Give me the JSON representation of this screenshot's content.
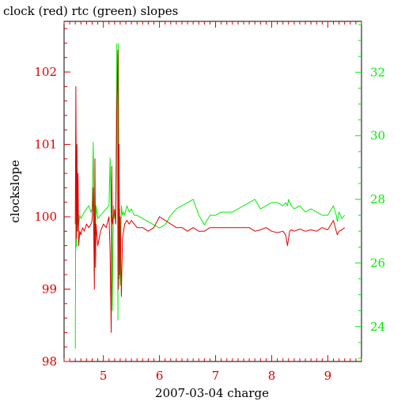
{
  "chart_data": {
    "type": "line",
    "title": "clock (red) rtc (green) slopes",
    "xlabel": "2007-03-04 charge",
    "ylabel_left": "clockslope",
    "ylabel_right": "",
    "xlim": [
      4.3,
      9.6
    ],
    "ylim_left": [
      98.0,
      102.7
    ],
    "ylim_right": [
      22.9,
      33.6
    ],
    "x_ticks": [
      5,
      6,
      7,
      8,
      9
    ],
    "y_ticks_left": [
      98,
      99,
      100,
      101,
      102
    ],
    "y_ticks_right": [
      24,
      26,
      28,
      30,
      32
    ],
    "grid": false,
    "legend": "none",
    "colors": {
      "clock": "#dd0000",
      "rtc": "#00ee00",
      "axis": "#000000",
      "tick_left": "#dd0000",
      "tick_right": "#00ee00"
    },
    "series": [
      {
        "name": "clock",
        "axis": "left",
        "x": [
          4.5,
          4.51,
          4.52,
          4.53,
          4.54,
          4.55,
          4.56,
          4.58,
          4.6,
          4.63,
          4.66,
          4.7,
          4.74,
          4.78,
          4.8,
          4.82,
          4.84,
          4.85,
          4.86,
          4.87,
          4.9,
          4.95,
          5.0,
          5.05,
          5.1,
          5.12,
          5.14,
          5.15,
          5.16,
          5.18,
          5.2,
          5.22,
          5.24,
          5.26,
          5.27,
          5.28,
          5.29,
          5.3,
          5.32,
          5.34,
          5.36,
          5.38,
          5.42,
          5.46,
          5.5,
          5.55,
          5.6,
          5.7,
          5.8,
          5.9,
          6.0,
          6.1,
          6.2,
          6.3,
          6.4,
          6.5,
          6.6,
          6.7,
          6.8,
          6.9,
          7.0,
          7.1,
          7.2,
          7.3,
          7.4,
          7.5,
          7.6,
          7.7,
          7.8,
          7.9,
          8.0,
          8.1,
          8.2,
          8.25,
          8.28,
          8.3,
          8.32,
          8.35,
          8.4,
          8.5,
          8.6,
          8.7,
          8.8,
          8.9,
          9.0,
          9.1,
          9.15,
          9.17,
          9.2,
          9.25,
          9.3
        ],
        "values": [
          99.9,
          101.8,
          99.7,
          101.0,
          99.8,
          100.6,
          99.6,
          99.8,
          99.75,
          99.85,
          99.8,
          99.9,
          99.85,
          99.9,
          99.95,
          100.4,
          99.0,
          100.8,
          99.3,
          99.9,
          99.6,
          99.8,
          99.9,
          99.85,
          100.0,
          99.5,
          98.4,
          100.7,
          99.9,
          100.0,
          100.1,
          99.9,
          101.5,
          102.3,
          99.0,
          101.0,
          99.2,
          100.0,
          98.9,
          99.7,
          99.8,
          99.9,
          99.95,
          99.9,
          99.95,
          99.9,
          99.85,
          99.85,
          99.8,
          99.85,
          100.0,
          99.95,
          99.9,
          99.85,
          99.85,
          99.8,
          99.85,
          99.8,
          99.8,
          99.85,
          99.85,
          99.85,
          99.85,
          99.85,
          99.85,
          99.85,
          99.85,
          99.8,
          99.82,
          99.85,
          99.8,
          99.78,
          99.8,
          99.75,
          99.6,
          99.7,
          99.8,
          99.82,
          99.8,
          99.83,
          99.8,
          99.82,
          99.8,
          99.85,
          99.82,
          99.95,
          99.8,
          99.75,
          99.8,
          99.82,
          99.85
        ]
      },
      {
        "name": "rtc",
        "axis": "right",
        "x": [
          4.5,
          4.51,
          4.52,
          4.53,
          4.54,
          4.55,
          4.56,
          4.58,
          4.6,
          4.63,
          4.66,
          4.7,
          4.74,
          4.78,
          4.8,
          4.82,
          4.84,
          4.85,
          4.86,
          4.87,
          4.9,
          4.95,
          5.0,
          5.05,
          5.1,
          5.12,
          5.14,
          5.15,
          5.16,
          5.18,
          5.2,
          5.22,
          5.24,
          5.26,
          5.27,
          5.28,
          5.29,
          5.3,
          5.32,
          5.34,
          5.36,
          5.38,
          5.42,
          5.46,
          5.5,
          5.55,
          5.6,
          5.7,
          5.8,
          5.9,
          6.0,
          6.1,
          6.2,
          6.3,
          6.4,
          6.5,
          6.6,
          6.7,
          6.8,
          6.9,
          7.0,
          7.1,
          7.2,
          7.3,
          7.4,
          7.5,
          7.6,
          7.7,
          7.8,
          7.9,
          8.0,
          8.1,
          8.2,
          8.25,
          8.28,
          8.3,
          8.32,
          8.35,
          8.4,
          8.5,
          8.6,
          8.7,
          8.8,
          8.9,
          9.0,
          9.1,
          9.15,
          9.17,
          9.2,
          9.25,
          9.3
        ],
        "values": [
          23.3,
          29.5,
          26.5,
          28.5,
          27.0,
          28.0,
          27.2,
          27.5,
          27.4,
          27.5,
          27.6,
          27.7,
          27.8,
          27.6,
          27.7,
          29.8,
          26.0,
          28.5,
          27.0,
          27.8,
          27.4,
          27.5,
          27.6,
          27.7,
          27.8,
          29.3,
          27.3,
          28.7,
          24.5,
          27.8,
          27.4,
          27.5,
          32.9,
          24.2,
          32.9,
          25.5,
          27.7,
          25.3,
          27.8,
          27.5,
          27.6,
          27.5,
          27.8,
          27.6,
          27.7,
          27.5,
          27.5,
          27.4,
          27.3,
          27.2,
          27.1,
          27.2,
          27.5,
          27.7,
          27.8,
          27.9,
          28.0,
          27.5,
          27.2,
          27.5,
          27.5,
          27.6,
          27.6,
          27.6,
          27.7,
          27.8,
          27.9,
          28.0,
          27.7,
          27.8,
          27.9,
          27.9,
          27.8,
          27.9,
          27.8,
          28.0,
          27.9,
          27.8,
          27.7,
          27.8,
          27.6,
          27.7,
          27.6,
          27.5,
          27.5,
          27.8,
          27.5,
          27.3,
          27.6,
          27.4,
          27.5
        ]
      }
    ]
  }
}
